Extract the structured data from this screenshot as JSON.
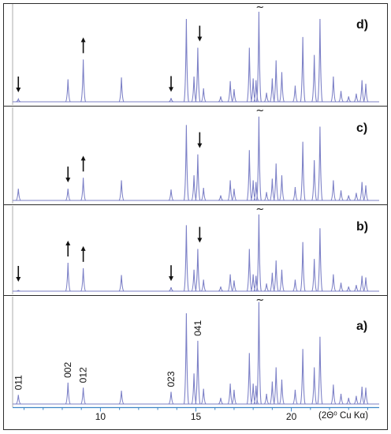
{
  "chart_data": {
    "type": "line",
    "xlim": [
      5.4,
      24.6
    ],
    "ylim": [
      0,
      100
    ],
    "x_ticks": [
      10,
      15,
      20
    ],
    "x_axis_unit": "(2Θ⁰ Cu Kα)",
    "grid": false,
    "line_color": "#7b7fc6",
    "frame_color": "#2c2c2c",
    "axis_color": "#3f86c6",
    "truncation_mark": "~",
    "truncated_peak_x": 18.3,
    "panels": [
      {
        "label": "d)",
        "peaks": [
          {
            "x": 5.7,
            "h": 3
          },
          {
            "x": 8.3,
            "h": 25
          },
          {
            "x": 9.1,
            "h": 47
          },
          {
            "x": 11.1,
            "h": 27
          },
          {
            "x": 13.7,
            "h": 4
          },
          {
            "x": 14.5,
            "h": 92
          },
          {
            "x": 14.9,
            "h": 28
          },
          {
            "x": 15.1,
            "h": 60
          },
          {
            "x": 15.4,
            "h": 15
          },
          {
            "x": 16.3,
            "h": 6
          },
          {
            "x": 16.8,
            "h": 23
          },
          {
            "x": 17.0,
            "h": 14
          },
          {
            "x": 17.8,
            "h": 60
          },
          {
            "x": 18.0,
            "h": 26
          },
          {
            "x": 18.15,
            "h": 24
          },
          {
            "x": 18.3,
            "h": 100
          },
          {
            "x": 18.7,
            "h": 10
          },
          {
            "x": 19.0,
            "h": 26
          },
          {
            "x": 19.2,
            "h": 46
          },
          {
            "x": 19.5,
            "h": 33
          },
          {
            "x": 20.2,
            "h": 18
          },
          {
            "x": 20.6,
            "h": 72
          },
          {
            "x": 21.2,
            "h": 52
          },
          {
            "x": 21.5,
            "h": 92
          },
          {
            "x": 22.2,
            "h": 28
          },
          {
            "x": 22.6,
            "h": 12
          },
          {
            "x": 23.0,
            "h": 6
          },
          {
            "x": 23.4,
            "h": 9
          },
          {
            "x": 23.7,
            "h": 24
          },
          {
            "x": 23.9,
            "h": 20
          }
        ],
        "arrows": [
          {
            "x": 5.7,
            "dir": "down"
          },
          {
            "x": 9.1,
            "dir": "up"
          },
          {
            "x": 13.7,
            "dir": "down"
          },
          {
            "x": 15.2,
            "dir": "down"
          }
        ],
        "peak_labels": []
      },
      {
        "label": "c)",
        "peaks": [
          {
            "x": 5.7,
            "h": 14
          },
          {
            "x": 8.3,
            "h": 14
          },
          {
            "x": 9.1,
            "h": 27
          },
          {
            "x": 11.1,
            "h": 24
          },
          {
            "x": 13.7,
            "h": 13
          },
          {
            "x": 14.5,
            "h": 90
          },
          {
            "x": 14.9,
            "h": 30
          },
          {
            "x": 15.1,
            "h": 55
          },
          {
            "x": 15.4,
            "h": 15
          },
          {
            "x": 16.3,
            "h": 6
          },
          {
            "x": 16.8,
            "h": 24
          },
          {
            "x": 17.0,
            "h": 14
          },
          {
            "x": 17.8,
            "h": 60
          },
          {
            "x": 18.0,
            "h": 24
          },
          {
            "x": 18.15,
            "h": 22
          },
          {
            "x": 18.3,
            "h": 100
          },
          {
            "x": 18.7,
            "h": 10
          },
          {
            "x": 19.0,
            "h": 26
          },
          {
            "x": 19.2,
            "h": 44
          },
          {
            "x": 19.5,
            "h": 30
          },
          {
            "x": 20.2,
            "h": 16
          },
          {
            "x": 20.6,
            "h": 70
          },
          {
            "x": 21.2,
            "h": 48
          },
          {
            "x": 21.5,
            "h": 88
          },
          {
            "x": 22.2,
            "h": 24
          },
          {
            "x": 22.6,
            "h": 12
          },
          {
            "x": 23.0,
            "h": 6
          },
          {
            "x": 23.4,
            "h": 9
          },
          {
            "x": 23.7,
            "h": 22
          },
          {
            "x": 23.9,
            "h": 18
          }
        ],
        "arrows": [
          {
            "x": 8.3,
            "dir": "down"
          },
          {
            "x": 9.1,
            "dir": "up"
          },
          {
            "x": 15.2,
            "dir": "down"
          }
        ],
        "peak_labels": []
      },
      {
        "label": "b)",
        "peaks": [
          {
            "x": 5.7,
            "h": 1
          },
          {
            "x": 8.3,
            "h": 37
          },
          {
            "x": 9.1,
            "h": 30
          },
          {
            "x": 11.1,
            "h": 21
          },
          {
            "x": 13.7,
            "h": 5
          },
          {
            "x": 14.5,
            "h": 86
          },
          {
            "x": 14.9,
            "h": 28
          },
          {
            "x": 15.1,
            "h": 55
          },
          {
            "x": 15.4,
            "h": 15
          },
          {
            "x": 16.3,
            "h": 6
          },
          {
            "x": 16.8,
            "h": 22
          },
          {
            "x": 17.0,
            "h": 14
          },
          {
            "x": 17.8,
            "h": 55
          },
          {
            "x": 18.0,
            "h": 22
          },
          {
            "x": 18.15,
            "h": 20
          },
          {
            "x": 18.3,
            "h": 100
          },
          {
            "x": 18.7,
            "h": 10
          },
          {
            "x": 19.0,
            "h": 24
          },
          {
            "x": 19.2,
            "h": 40
          },
          {
            "x": 19.5,
            "h": 28
          },
          {
            "x": 20.2,
            "h": 15
          },
          {
            "x": 20.6,
            "h": 64
          },
          {
            "x": 21.2,
            "h": 42
          },
          {
            "x": 21.5,
            "h": 82
          },
          {
            "x": 22.2,
            "h": 22
          },
          {
            "x": 22.6,
            "h": 11
          },
          {
            "x": 23.0,
            "h": 6
          },
          {
            "x": 23.4,
            "h": 8
          },
          {
            "x": 23.7,
            "h": 20
          },
          {
            "x": 23.9,
            "h": 18
          }
        ],
        "arrows": [
          {
            "x": 5.7,
            "dir": "down"
          },
          {
            "x": 8.3,
            "dir": "up"
          },
          {
            "x": 9.1,
            "dir": "up"
          },
          {
            "x": 13.7,
            "dir": "down"
          },
          {
            "x": 15.2,
            "dir": "down"
          }
        ],
        "peak_labels": []
      },
      {
        "label": "a)",
        "peaks": [
          {
            "x": 5.7,
            "h": 9
          },
          {
            "x": 8.3,
            "h": 21
          },
          {
            "x": 9.1,
            "h": 16
          },
          {
            "x": 11.1,
            "h": 13
          },
          {
            "x": 13.7,
            "h": 12
          },
          {
            "x": 14.5,
            "h": 89
          },
          {
            "x": 14.9,
            "h": 30
          },
          {
            "x": 15.1,
            "h": 62
          },
          {
            "x": 15.4,
            "h": 15
          },
          {
            "x": 16.3,
            "h": 6
          },
          {
            "x": 16.8,
            "h": 20
          },
          {
            "x": 17.0,
            "h": 14
          },
          {
            "x": 17.8,
            "h": 50
          },
          {
            "x": 18.0,
            "h": 20
          },
          {
            "x": 18.15,
            "h": 18
          },
          {
            "x": 18.3,
            "h": 100
          },
          {
            "x": 18.7,
            "h": 10
          },
          {
            "x": 19.0,
            "h": 22
          },
          {
            "x": 19.2,
            "h": 36
          },
          {
            "x": 19.5,
            "h": 24
          },
          {
            "x": 20.2,
            "h": 14
          },
          {
            "x": 20.6,
            "h": 54
          },
          {
            "x": 21.2,
            "h": 36
          },
          {
            "x": 21.5,
            "h": 66
          },
          {
            "x": 22.2,
            "h": 19
          },
          {
            "x": 22.6,
            "h": 10
          },
          {
            "x": 23.0,
            "h": 6
          },
          {
            "x": 23.4,
            "h": 8
          },
          {
            "x": 23.7,
            "h": 17
          },
          {
            "x": 23.9,
            "h": 16
          }
        ],
        "arrows": [],
        "peak_labels": [
          {
            "x": 5.7,
            "text": "011"
          },
          {
            "x": 8.3,
            "text": "002"
          },
          {
            "x": 9.1,
            "text": "012"
          },
          {
            "x": 13.7,
            "text": "023"
          },
          {
            "x": 15.1,
            "text": "041"
          }
        ]
      }
    ]
  }
}
